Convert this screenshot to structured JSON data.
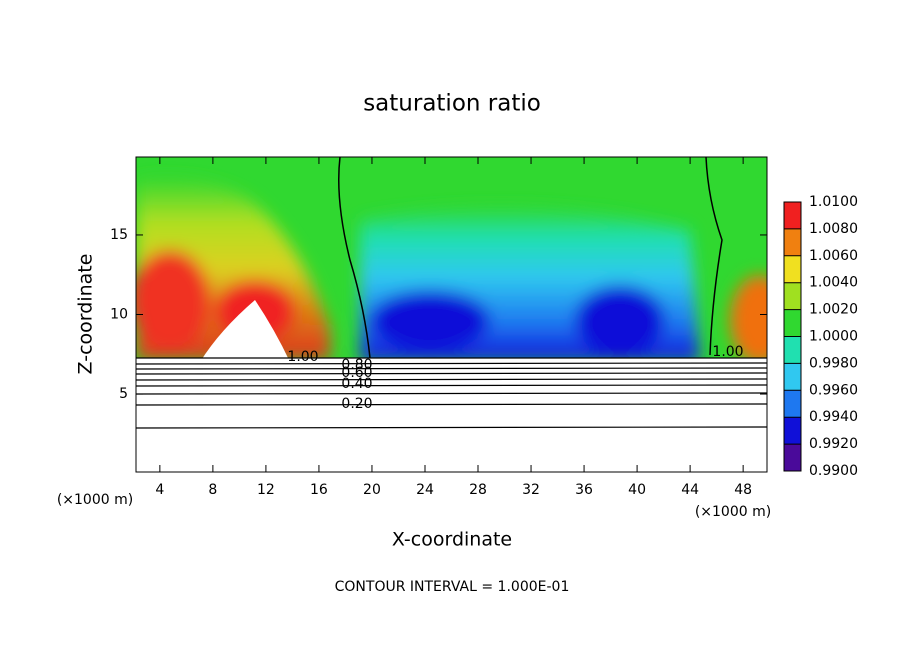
{
  "chart_data": {
    "type": "contour",
    "title": "saturation ratio",
    "x_label": "X-coordinate",
    "y_label": "Z-coordinate",
    "x_unit_labels": [
      "(×1000 m)",
      "(×1000 m)"
    ],
    "footer": "CONTOUR INTERVAL = 1.000E-01",
    "xlim": [
      2.2,
      49.8
    ],
    "xticks": [
      4,
      8,
      12,
      16,
      20,
      24,
      28,
      32,
      36,
      40,
      44,
      48
    ],
    "ylim": [
      0.1,
      19.9
    ],
    "yticks": [
      5,
      10,
      15
    ],
    "contour_labels": [
      "1.00",
      "0.80",
      "0.60",
      "0.40",
      "0.20",
      "1.00"
    ],
    "colorbar": {
      "ticks": [
        {
          "value": 0.99,
          "label": "0.9900"
        },
        {
          "value": 0.992,
          "label": "0.9920"
        },
        {
          "value": 0.994,
          "label": "0.9940"
        },
        {
          "value": 0.996,
          "label": "0.9960"
        },
        {
          "value": 0.998,
          "label": "0.9980"
        },
        {
          "value": 1.0,
          "label": "1.0000"
        },
        {
          "value": 1.002,
          "label": "1.0020"
        },
        {
          "value": 1.004,
          "label": "1.0040"
        },
        {
          "value": 1.006,
          "label": "1.0060"
        },
        {
          "value": 1.008,
          "label": "1.0080"
        },
        {
          "value": 1.01,
          "label": "1.0100"
        }
      ],
      "colors": [
        "#4a0a9a",
        "#1010d8",
        "#1e78f0",
        "#30c8f0",
        "#20e0b0",
        "#30d830",
        "#a0e020",
        "#f0e020",
        "#f08010",
        "#f02020"
      ]
    }
  }
}
